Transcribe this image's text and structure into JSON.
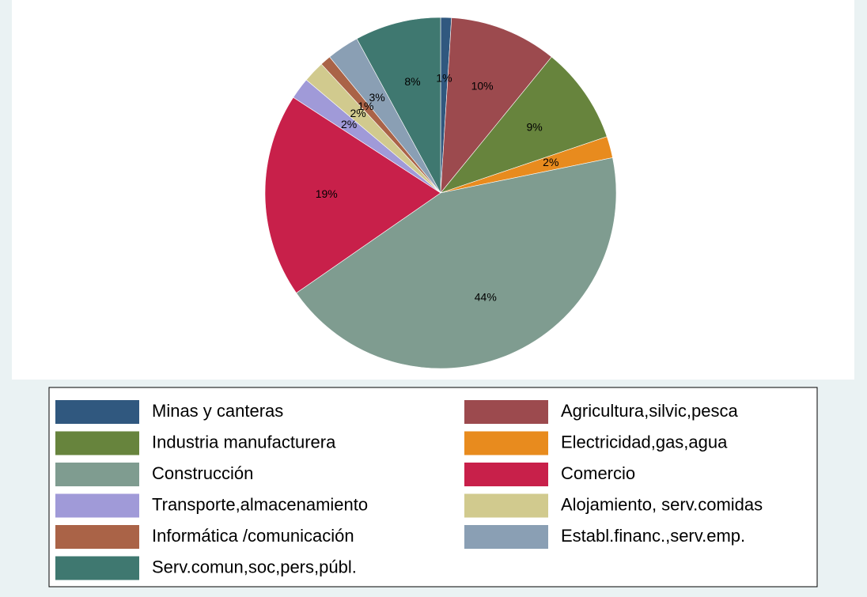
{
  "chart_data": {
    "type": "pie",
    "categories": [
      "Minas y canteras",
      "Agricultura,silvic,pesca",
      "Industria manufacturera",
      "Electricidad,gas,agua",
      "Construcción",
      "Comercio",
      "Transporte,almacenamiento",
      "Alojamiento, serv.comidas",
      "Informática /comunicación",
      "Establ.financ.,serv.emp.",
      "Serv.comun,soc,pers,públ."
    ],
    "values": [
      1,
      10,
      9,
      2,
      44,
      19,
      2,
      2,
      1,
      3,
      8
    ],
    "value_labels": [
      "1%",
      "10%",
      "9%",
      "2%",
      "44%",
      "19%",
      "2%",
      "2%",
      "1%",
      "3%",
      "8%"
    ],
    "colors": [
      "#30587f",
      "#9c4a4e",
      "#67843d",
      "#e88b1e",
      "#7f9c90",
      "#c8204a",
      "#a09ad8",
      "#d1ca8e",
      "#aa6347",
      "#8a9fb4",
      "#3f7870"
    ],
    "legend": "bottom"
  }
}
